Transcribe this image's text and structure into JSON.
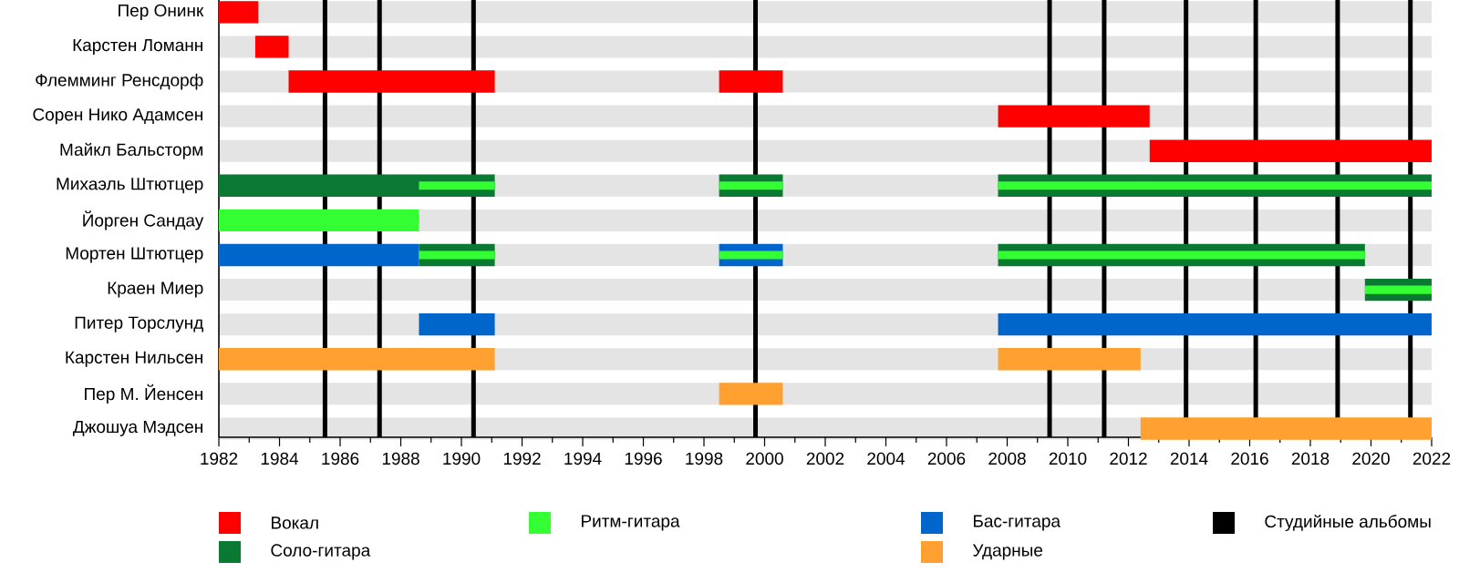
{
  "chart_data": {
    "type": "bar",
    "orientation": "horizontal",
    "grid": "y",
    "legend": "bottom",
    "categories": [
      "Пер Онинк",
      "Карстен Ломанн",
      "Флемминг Ренсдорф",
      "Сорен Нико Адамсен",
      "Майкл Бальсторм",
      "Михаэль Штютцер",
      "Йорген Сандау",
      "Мортен Штютцер",
      "Краен Миер",
      "Питер Торслунд",
      "Карстен Нильсен",
      "Пер М. Йенсен",
      "Джошуа Мэдсен"
    ],
    "xlim": [
      1982,
      2022
    ],
    "xticks": [
      1982,
      {
        "value": 1983,
        "label": null
      },
      1984,
      {
        "value": 1985,
        "label": null
      },
      1986,
      {
        "value": 1987,
        "label": null
      },
      1988,
      {
        "value": 1989,
        "label": null
      },
      1990,
      {
        "value": 1991,
        "label": null
      },
      1992,
      {
        "value": 1993,
        "label": null
      },
      1994,
      {
        "value": 1995,
        "label": null
      },
      1996,
      {
        "value": 1997,
        "label": null
      },
      1998,
      {
        "value": 1999,
        "label": null
      },
      2000,
      {
        "value": 2001,
        "label": null
      },
      2002,
      {
        "value": 2003,
        "label": null
      },
      2004,
      {
        "value": 2005,
        "label": null
      },
      2006,
      {
        "value": 2007,
        "label": null
      },
      2008,
      {
        "value": 2009,
        "label": null
      },
      2010,
      {
        "value": 2011,
        "label": null
      },
      2012,
      {
        "value": 2013,
        "label": null
      },
      2014,
      {
        "value": 2015,
        "label": null
      },
      2016,
      {
        "value": 2017,
        "label": null
      },
      2018,
      {
        "value": 2019,
        "label": null
      },
      2020,
      {
        "value": 2021,
        "label": null
      },
      2022
    ],
    "series": [
      {
        "name": "Вокал",
        "color": "#ff0000",
        "base": [
          1982,
          1983.2,
          1984.3,
          2007.7,
          2012.7,
          null,
          null,
          null,
          null,
          null,
          null,
          null,
          null
        ],
        "values": [
          1.3,
          1.1,
          6.8,
          5.0,
          9.3,
          null,
          null,
          null,
          null,
          null,
          null,
          null,
          null
        ]
      },
      {
        "color": "#ff0000",
        "base": [
          null,
          null,
          1998.5,
          null,
          null,
          null,
          null,
          null,
          null,
          null,
          null,
          null,
          null
        ],
        "values": [
          null,
          null,
          2.1,
          null,
          null,
          null,
          null,
          null,
          null,
          null,
          null,
          null,
          null
        ]
      },
      {
        "name": "Соло-гитара",
        "color": "#0a7a32",
        "base": [
          null,
          null,
          null,
          null,
          null,
          1982,
          null,
          1988.6,
          2019.8,
          null,
          null,
          null,
          null
        ],
        "values": [
          null,
          null,
          null,
          null,
          null,
          9.1,
          null,
          2.5,
          2.2,
          null,
          null,
          null,
          null
        ]
      },
      {
        "color": "#0a7a32",
        "base": [
          null,
          null,
          null,
          null,
          null,
          1998.5,
          null,
          2007.7,
          null,
          null,
          null,
          null,
          null
        ],
        "values": [
          null,
          null,
          null,
          null,
          null,
          2.1,
          null,
          12.1,
          null,
          null,
          null,
          null,
          null
        ]
      },
      {
        "color": "#0a7a32",
        "base": [
          null,
          null,
          null,
          null,
          null,
          2007.7,
          null,
          null,
          null,
          null,
          null,
          null,
          null
        ],
        "values": [
          null,
          null,
          null,
          null,
          null,
          14.3,
          null,
          null,
          null,
          null,
          null,
          null,
          null
        ]
      },
      {
        "name": "Бас-гитара",
        "color": "#0066cc",
        "base": [
          null,
          null,
          null,
          null,
          null,
          null,
          null,
          1982,
          null,
          1988.6,
          null,
          null,
          null
        ],
        "values": [
          null,
          null,
          null,
          null,
          null,
          null,
          null,
          6.6,
          null,
          2.5,
          null,
          null,
          null
        ]
      },
      {
        "color": "#0066cc",
        "base": [
          null,
          null,
          null,
          null,
          null,
          null,
          null,
          1998.5,
          null,
          2007.7,
          null,
          null,
          null
        ],
        "values": [
          null,
          null,
          null,
          null,
          null,
          null,
          null,
          2.1,
          null,
          14.3,
          null,
          null,
          null
        ]
      },
      {
        "name": "Ударные",
        "color": "#ffa030",
        "base": [
          null,
          null,
          null,
          null,
          null,
          null,
          null,
          null,
          null,
          null,
          1982,
          1998.5,
          2012.4
        ],
        "values": [
          null,
          null,
          null,
          null,
          null,
          null,
          null,
          null,
          null,
          null,
          9.1,
          2.1,
          9.6
        ]
      },
      {
        "color": "#ffa030",
        "base": [
          null,
          null,
          null,
          null,
          null,
          null,
          null,
          null,
          null,
          null,
          2007.7,
          null,
          null
        ],
        "values": [
          null,
          null,
          null,
          null,
          null,
          null,
          null,
          null,
          null,
          null,
          4.7,
          null,
          null
        ]
      },
      {
        "name": "Ритм-гитара",
        "color": "#33ff33",
        "base": [
          null,
          null,
          null,
          null,
          null,
          1988.6,
          1982,
          1988.6,
          2019.8,
          null,
          null,
          null,
          null
        ],
        "values": [
          null,
          null,
          null,
          null,
          null,
          2.5,
          6.6,
          2.5,
          2.2,
          null,
          null,
          null,
          null
        ]
      },
      {
        "color": "#33ff33",
        "base": [
          null,
          null,
          null,
          null,
          null,
          1998.5,
          null,
          1998.5,
          null,
          null,
          null,
          null,
          null
        ],
        "values": [
          null,
          null,
          null,
          null,
          null,
          2.1,
          null,
          2.1,
          null,
          null,
          null,
          null,
          null
        ]
      },
      {
        "color": "#33ff33",
        "base": [
          null,
          null,
          null,
          null,
          null,
          2007.7,
          null,
          2007.7,
          null,
          null,
          null,
          null,
          null
        ],
        "values": [
          null,
          null,
          null,
          null,
          null,
          14.3,
          null,
          12.1,
          null,
          null,
          null,
          null,
          null
        ]
      }
    ],
    "ref_lines": [
      {
        "axis": "x",
        "value": 1985.5,
        "color": "#000000",
        "label": "Студийные альбомы"
      },
      {
        "axis": "x",
        "value": 1987.3,
        "color": "#000000"
      },
      {
        "axis": "x",
        "value": 1990.4,
        "color": "#000000"
      },
      {
        "axis": "x",
        "value": 1999.7,
        "color": "#000000"
      },
      {
        "axis": "x",
        "value": 2009.4,
        "color": "#000000"
      },
      {
        "axis": "x",
        "value": 2011.2,
        "color": "#000000"
      },
      {
        "axis": "x",
        "value": 2013.9,
        "color": "#000000"
      },
      {
        "axis": "x",
        "value": 2016.2,
        "color": "#000000"
      },
      {
        "axis": "x",
        "value": 2018.9,
        "color": "#000000"
      },
      {
        "axis": "x",
        "value": 2021.3,
        "color": "#000000"
      }
    ]
  }
}
